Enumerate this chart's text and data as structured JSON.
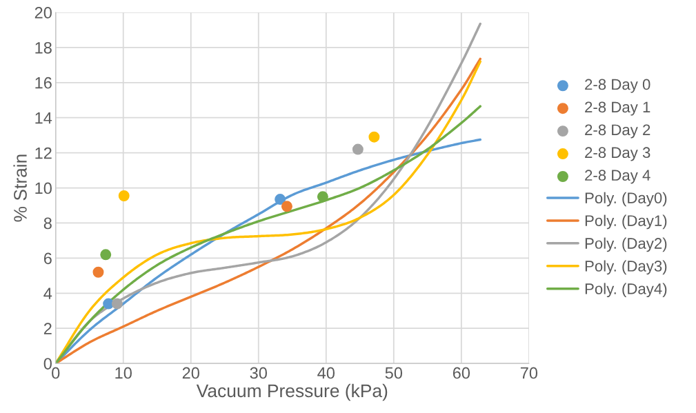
{
  "chart_data": {
    "type": "scatter",
    "xlabel": "Vacuum Pressure (kPa)",
    "ylabel": "% Strain",
    "xlim": [
      0,
      70
    ],
    "xticks": [
      0,
      10,
      20,
      30,
      40,
      50,
      60,
      70
    ],
    "ylim": [
      0,
      20
    ],
    "yticks": [
      0,
      2,
      4,
      6,
      8,
      10,
      12,
      14,
      16,
      18,
      20
    ],
    "grid": true,
    "legend": "right",
    "line_style": "solid",
    "series": [
      {
        "name": "2-8 Day 0",
        "marker": "circle",
        "color": "#5b9bd5",
        "x": [
          7.8,
          33.2
        ],
        "values": [
          3.4,
          9.35
        ]
      },
      {
        "name": "2-8 Day 1",
        "marker": "circle",
        "color": "#ed7d31",
        "x": [
          6.3,
          34.2
        ],
        "values": [
          5.2,
          8.95
        ]
      },
      {
        "name": "2-8 Day 2",
        "marker": "circle",
        "color": "#a5a5a5",
        "x": [
          9.1,
          44.7
        ],
        "values": [
          3.4,
          12.2
        ]
      },
      {
        "name": "2-8 Day 3",
        "marker": "circle",
        "color": "#ffc000",
        "x": [
          10.1,
          47.1
        ],
        "values": [
          9.55,
          12.9
        ]
      },
      {
        "name": "2-8 Day 4",
        "marker": "circle",
        "color": "#70ad47",
        "x": [
          7.4,
          39.5
        ],
        "values": [
          6.2,
          9.5
        ]
      },
      {
        "name": "Poly. (Day0)",
        "type": "line",
        "marker": "none",
        "color": "#5b9bd5",
        "x": [
          0,
          5,
          10,
          15,
          20,
          25,
          30,
          35,
          40,
          45,
          50,
          55,
          60,
          62.8
        ],
        "values": [
          0,
          1.9,
          3.4,
          4.9,
          6.2,
          7.4,
          8.5,
          9.6,
          10.3,
          11.0,
          11.6,
          12.1,
          12.55,
          12.75
        ]
      },
      {
        "name": "Poly. (Day1)",
        "type": "line",
        "marker": "none",
        "color": "#ed7d31",
        "x": [
          0,
          5,
          10,
          15,
          20,
          25,
          30,
          35,
          40,
          45,
          50,
          55,
          60,
          62.8
        ],
        "values": [
          0,
          1.2,
          2.1,
          3.0,
          3.8,
          4.6,
          5.5,
          6.5,
          7.7,
          9.1,
          10.9,
          13.0,
          15.6,
          17.35
        ]
      },
      {
        "name": "Poly. (Day2)",
        "type": "line",
        "marker": "none",
        "color": "#a5a5a5",
        "x": [
          0,
          5,
          10,
          15,
          20,
          25,
          30,
          35,
          40,
          45,
          50,
          55,
          60,
          62.8
        ],
        "values": [
          0,
          2.4,
          3.7,
          4.6,
          5.15,
          5.45,
          5.75,
          6.1,
          6.9,
          8.3,
          10.5,
          13.5,
          17.1,
          19.35
        ]
      },
      {
        "name": "Poly. (Day3)",
        "type": "line",
        "marker": "none",
        "color": "#ffc000",
        "x": [
          0,
          5,
          10,
          15,
          20,
          25,
          30,
          35,
          40,
          45,
          50,
          55,
          60,
          62.8
        ],
        "values": [
          0,
          3.0,
          4.9,
          6.2,
          6.85,
          7.15,
          7.25,
          7.35,
          7.65,
          8.3,
          9.6,
          11.9,
          15.0,
          17.2
        ]
      },
      {
        "name": "Poly. (Day4)",
        "type": "line",
        "marker": "none",
        "color": "#70ad47",
        "x": [
          0,
          5,
          10,
          15,
          20,
          25,
          30,
          35,
          40,
          45,
          50,
          55,
          60,
          62.8
        ],
        "values": [
          0,
          2.4,
          4.2,
          5.6,
          6.6,
          7.4,
          8.1,
          8.7,
          9.3,
          10.0,
          11.0,
          12.2,
          13.7,
          14.65
        ]
      }
    ]
  }
}
